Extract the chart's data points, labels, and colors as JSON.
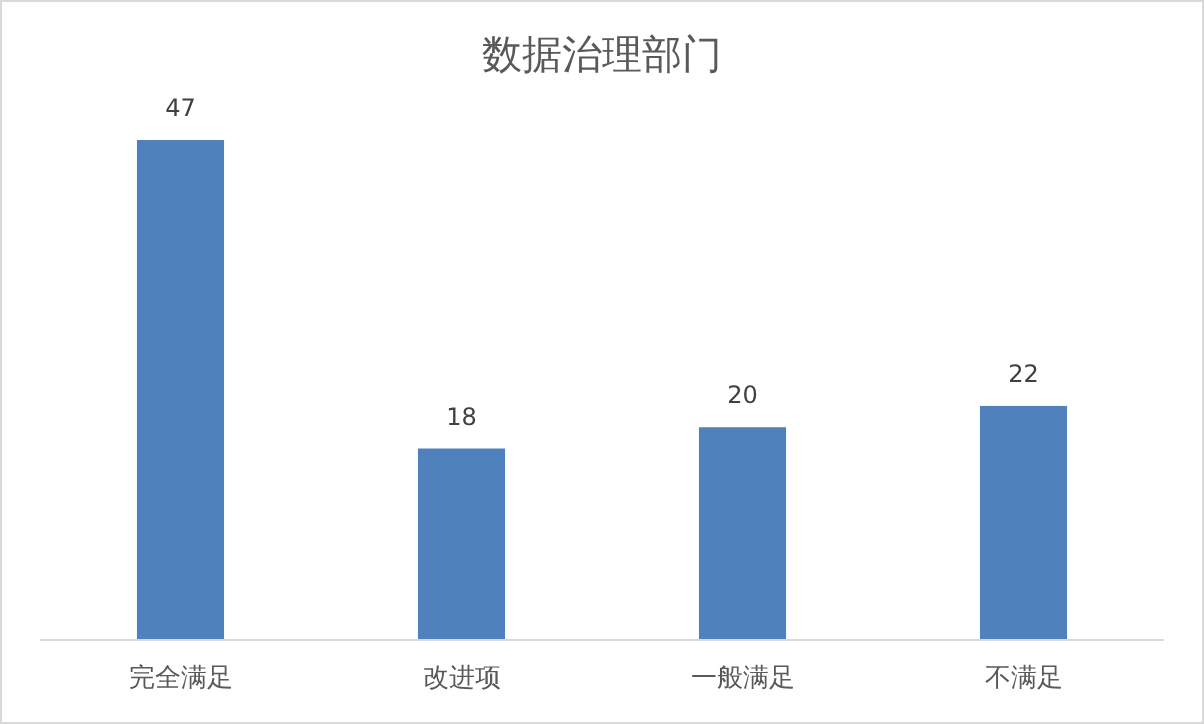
{
  "chart_data": {
    "type": "bar",
    "title": "数据治理部门",
    "categories": [
      "完全满足",
      "改进项",
      "一般满足",
      "不满足"
    ],
    "values": [
      47,
      18,
      20,
      22
    ],
    "color": "#4f81bd",
    "data_labels": true
  }
}
